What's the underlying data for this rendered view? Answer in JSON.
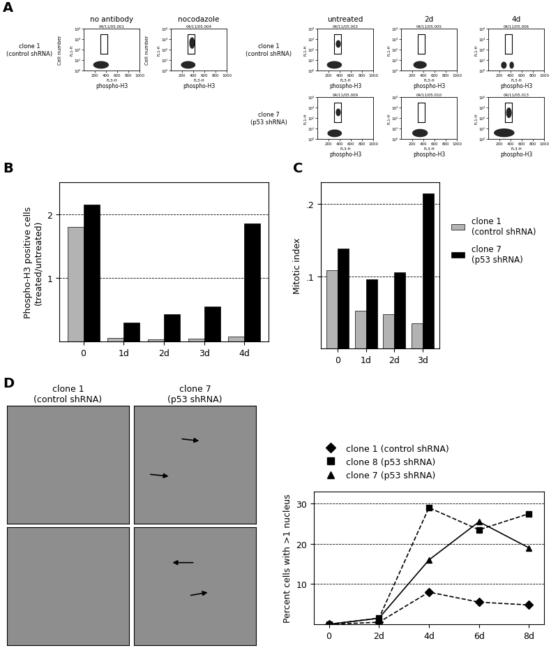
{
  "chart_data": [
    {
      "type": "flow",
      "panel": "A",
      "title": "no antibody",
      "subtitle": "04/11/05.001",
      "row_label": "clone 1\n(control shRNA)",
      "x_label": "phospho-H3",
      "x_channel": "FL3-H",
      "y_label": "Cell number",
      "y_channel": "FL1-H",
      "log": "y",
      "xlim": [
        0,
        1000
      ],
      "xticks": [
        200,
        400,
        600,
        800,
        1000
      ],
      "ylim": [
        1,
        10000
      ],
      "yticks": [
        {
          "value": 1,
          "label": "10⁰"
        },
        {
          "value": 10,
          "label": "10¹"
        },
        {
          "value": 100,
          "label": "10²"
        },
        {
          "value": 1000,
          "label": "10³"
        },
        {
          "value": 10000,
          "label": "10⁴"
        }
      ],
      "gate": {
        "x": [
          300,
          420
        ],
        "y": [
          40,
          3000
        ]
      },
      "clusters": [
        {
          "x": [
            170,
            450
          ],
          "y": [
            1.5,
            8
          ]
        }
      ]
    },
    {
      "type": "flow",
      "title": "nocodazole",
      "subtitle": "04/11/05.004",
      "x_label": "phospho-H3",
      "x_channel": "FL3-H",
      "y_label": "Cell number",
      "y_channel": "FL1-H",
      "log": "y",
      "xlim": [
        0,
        1000
      ],
      "xticks": [
        200,
        400,
        600,
        800,
        1000
      ],
      "ylim": [
        1,
        10000
      ],
      "yticks": [
        {
          "value": 1,
          "label": "10⁰"
        },
        {
          "value": 10,
          "label": "10¹"
        },
        {
          "value": 100,
          "label": "10²"
        },
        {
          "value": 1000,
          "label": "10³"
        },
        {
          "value": 10000,
          "label": "10⁴"
        }
      ],
      "gate": {
        "x": [
          300,
          420
        ],
        "y": [
          40,
          3000
        ]
      },
      "clusters": [
        {
          "x": [
            180,
            440
          ],
          "y": [
            1.5,
            8
          ]
        },
        {
          "x": [
            330,
            430
          ],
          "y": [
            120,
            1500
          ]
        }
      ]
    },
    {
      "type": "flow",
      "title": "untreated",
      "subtitle": "04/11/05.003",
      "row_label": "clone 1\n(control shRNA)",
      "x_label": "phospho-H3",
      "x_channel": "FL3-H",
      "y_channel": "FL1-H",
      "log": "y",
      "xlim": [
        0,
        1000
      ],
      "xticks": [
        200,
        400,
        600,
        800,
        1000
      ],
      "ylim": [
        1,
        10000
      ],
      "yticks": [
        {
          "value": 1,
          "label": "10⁰"
        },
        {
          "value": 10,
          "label": "10¹"
        },
        {
          "value": 100,
          "label": "10²"
        },
        {
          "value": 1000,
          "label": "10³"
        },
        {
          "value": 10000,
          "label": "10⁴"
        }
      ],
      "gate": {
        "x": [
          300,
          420
        ],
        "y": [
          40,
          3000
        ]
      },
      "clusters": [
        {
          "x": [
            170,
            440
          ],
          "y": [
            1.5,
            8
          ]
        },
        {
          "x": [
            330,
            420
          ],
          "y": [
            150,
            800
          ]
        }
      ]
    },
    {
      "type": "flow",
      "title": "2d",
      "subtitle": "04/11/05.005",
      "x_label": "phospho-H3",
      "x_channel": "FL3-H",
      "y_channel": "FL1-H",
      "log": "y",
      "xlim": [
        0,
        1000
      ],
      "xticks": [
        200,
        400,
        600,
        800,
        1000
      ],
      "ylim": [
        1,
        10000
      ],
      "yticks": [
        {
          "value": 1,
          "label": "10⁰"
        },
        {
          "value": 10,
          "label": "10¹"
        },
        {
          "value": 100,
          "label": "10²"
        },
        {
          "value": 1000,
          "label": "10³"
        },
        {
          "value": 10000,
          "label": "10⁴"
        }
      ],
      "gate": {
        "x": [
          300,
          420
        ],
        "y": [
          40,
          3000
        ]
      },
      "clusters": [
        {
          "x": [
            220,
            460
          ],
          "y": [
            1.5,
            8
          ]
        }
      ]
    },
    {
      "type": "flow",
      "title": "4d",
      "subtitle": "04/11/05.006",
      "x_label": "phospho-H3",
      "x_channel": "FL3-H",
      "y_channel": "FL1-H",
      "log": "y",
      "xlim": [
        0,
        1000
      ],
      "xticks": [
        200,
        400,
        600,
        800,
        1000
      ],
      "ylim": [
        1,
        10000
      ],
      "yticks": [
        {
          "value": 1,
          "label": "10⁰"
        },
        {
          "value": 10,
          "label": "10¹"
        },
        {
          "value": 100,
          "label": "10²"
        },
        {
          "value": 1000,
          "label": "10³"
        },
        {
          "value": 10000,
          "label": "10⁴"
        }
      ],
      "gate": {
        "x": [
          300,
          420
        ],
        "y": [
          40,
          3000
        ]
      },
      "clusters": [
        {
          "x": [
            230,
            330
          ],
          "y": [
            1.5,
            7
          ]
        },
        {
          "x": [
            380,
            460
          ],
          "y": [
            1.5,
            7
          ]
        }
      ]
    },
    {
      "type": "flow",
      "subtitle": "04/11/05.009",
      "row_label": "clone 7\n(p53 shRNA)",
      "x_label": "phospho-H3",
      "x_channel": "FL3-H",
      "y_channel": "FL1-H",
      "log": "y",
      "xlim": [
        0,
        1000
      ],
      "xticks": [
        200,
        400,
        600,
        800,
        1000
      ],
      "ylim": [
        1,
        10000
      ],
      "yticks": [
        {
          "value": 1,
          "label": "10⁰"
        },
        {
          "value": 10,
          "label": "10¹"
        },
        {
          "value": 100,
          "label": "10²"
        },
        {
          "value": 1000,
          "label": "10³"
        },
        {
          "value": 10000,
          "label": "10⁴"
        }
      ],
      "gate": {
        "x": [
          300,
          420
        ],
        "y": [
          40,
          3000
        ]
      },
      "clusters": [
        {
          "x": [
            180,
            440
          ],
          "y": [
            1.5,
            8
          ]
        },
        {
          "x": [
            330,
            420
          ],
          "y": [
            150,
            800
          ]
        }
      ]
    },
    {
      "type": "flow",
      "subtitle": "04/11/05.010",
      "x_label": "phospho-H3",
      "x_channel": "FL3-H",
      "y_channel": "FL1-H",
      "log": "y",
      "xlim": [
        0,
        1000
      ],
      "xticks": [
        200,
        400,
        600,
        800,
        1000
      ],
      "ylim": [
        1,
        10000
      ],
      "yticks": [
        {
          "value": 1,
          "label": "10⁰"
        },
        {
          "value": 10,
          "label": "10¹"
        },
        {
          "value": 100,
          "label": "10²"
        },
        {
          "value": 1000,
          "label": "10³"
        },
        {
          "value": 10000,
          "label": "10⁴"
        }
      ],
      "gate": {
        "x": [
          300,
          420
        ],
        "y": [
          40,
          3000
        ]
      },
      "clusters": [
        {
          "x": [
            200,
            480
          ],
          "y": [
            1.5,
            9
          ]
        }
      ]
    },
    {
      "type": "flow",
      "subtitle": "04/11/05.013",
      "x_label": "phospho-H3",
      "x_channel": "FL3-H",
      "y_channel": "FL1-H",
      "log": "y",
      "xlim": [
        0,
        1000
      ],
      "xticks": [
        200,
        400,
        600,
        800,
        1000
      ],
      "ylim": [
        1,
        10000
      ],
      "yticks": [
        {
          "value": 1,
          "label": "10⁰"
        },
        {
          "value": 10,
          "label": "10¹"
        },
        {
          "value": 100,
          "label": "10²"
        },
        {
          "value": 1000,
          "label": "10³"
        },
        {
          "value": 10000,
          "label": "10⁴"
        }
      ],
      "gate": {
        "x": [
          300,
          420
        ],
        "y": [
          40,
          3000
        ]
      },
      "clusters": [
        {
          "x": [
            100,
            470
          ],
          "y": [
            1.5,
            10
          ]
        },
        {
          "x": [
            320,
            420
          ],
          "y": [
            100,
            1000
          ]
        }
      ]
    },
    {
      "type": "bar",
      "panel": "B",
      "y_label": "Phospho-H3 positive cells\n(treated/untreated)",
      "categories": [
        "0",
        "1d",
        "2d",
        "3d",
        "4d"
      ],
      "ylim": [
        0,
        2.5
      ],
      "yticks": [
        1,
        2
      ],
      "grid": true,
      "series": [
        {
          "color": "#b3b3b3",
          "values": [
            1.8,
            0.05,
            0.03,
            0.04,
            0.08
          ]
        },
        {
          "color": "#000000",
          "values": [
            2.15,
            0.3,
            0.43,
            0.55,
            1.85
          ]
        }
      ]
    },
    {
      "type": "bar",
      "panel": "C",
      "y_label": "Mitotic index",
      "categories": [
        "0",
        "1d",
        "2d",
        "3d"
      ],
      "ylim": [
        0,
        0.23
      ],
      "yticks": [
        {
          "value": 0.1,
          "label": ".1"
        },
        {
          "value": 0.2,
          "label": ".2"
        }
      ],
      "grid": true,
      "legend": "center left",
      "series": [
        {
          "name": "clone 1\n(control shRNA)",
          "color": "#b3b3b3",
          "values": [
            0.108,
            0.052,
            0.047,
            0.035
          ]
        },
        {
          "name": "clone 7\n(p53 shRNA)",
          "color": "#000000",
          "values": [
            0.138,
            0.096,
            0.105,
            0.215
          ]
        }
      ]
    },
    {
      "type": "image",
      "panel": "D",
      "title": "clone 1\n(control shRNA)"
    },
    {
      "type": "image",
      "title": "clone 7\n(p53 shRNA)"
    },
    {
      "type": "line",
      "y_label": "Percent cells with >1 nucleus",
      "categories": [
        "0",
        "2d",
        "4d",
        "6d",
        "8d"
      ],
      "ylim": [
        0,
        33
      ],
      "yticks": [
        10,
        20,
        30
      ],
      "grid": true,
      "legend": "lower left",
      "series": [
        {
          "name": "clone 1 (control shRNA)",
          "color": "#000000",
          "marker": "diamond",
          "line_style": "dashed",
          "values": [
            0,
            0.5,
            8,
            5.5,
            4.8
          ]
        },
        {
          "name": "clone 8 (p53 shRNA)",
          "color": "#000000",
          "marker": "square",
          "line_style": "dashed",
          "values": [
            0,
            1.5,
            29,
            23.5,
            27.5
          ]
        },
        {
          "name": "clone 7 (p53 shRNA)",
          "color": "#000000",
          "marker": "triangle",
          "line_style": "solid",
          "values": [
            0,
            1.5,
            16,
            25.5,
            19
          ]
        }
      ]
    }
  ]
}
